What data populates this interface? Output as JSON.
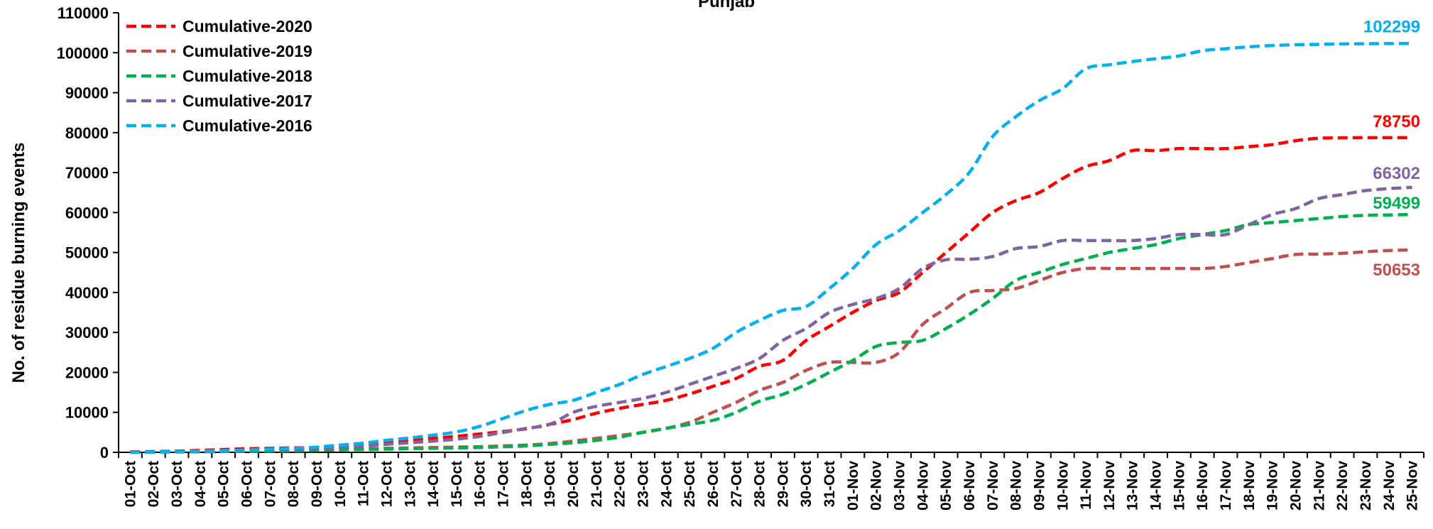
{
  "chart_data": {
    "type": "line",
    "title": "Punjab",
    "ylabel": "No. of residue burning events",
    "xlabel": "",
    "ylim": [
      0,
      110000
    ],
    "yticks": [
      0,
      10000,
      20000,
      30000,
      40000,
      50000,
      60000,
      70000,
      80000,
      90000,
      100000,
      110000
    ],
    "grid": false,
    "legend_position": "top-left",
    "categories": [
      "01-Oct",
      "02-Oct",
      "03-Oct",
      "04-Oct",
      "05-Oct",
      "06-Oct",
      "07-Oct",
      "08-Oct",
      "09-Oct",
      "10-Oct",
      "11-Oct",
      "12-Oct",
      "13-Oct",
      "14-Oct",
      "15-Oct",
      "16-Oct",
      "17-Oct",
      "18-Oct",
      "19-Oct",
      "20-Oct",
      "21-Oct",
      "22-Oct",
      "23-Oct",
      "24-Oct",
      "25-Oct",
      "26-Oct",
      "27-Oct",
      "28-Oct",
      "29-Oct",
      "30-Oct",
      "31-Oct",
      "01-Nov",
      "02-Nov",
      "03-Nov",
      "04-Nov",
      "05-Nov",
      "06-Nov",
      "07-Nov",
      "08-Nov",
      "09-Nov",
      "10-Nov",
      "11-Nov",
      "12-Nov",
      "13-Nov",
      "14-Nov",
      "15-Nov",
      "16-Nov",
      "17-Nov",
      "18-Nov",
      "19-Nov",
      "20-Nov",
      "21-Nov",
      "22-Nov",
      "23-Nov",
      "24-Nov",
      "25-Nov"
    ],
    "series": [
      {
        "name": "Cumulative-2020",
        "color": "#ff0000",
        "end_label": "78750",
        "values": [
          100,
          200,
          300,
          500,
          700,
          900,
          1000,
          1100,
          1200,
          1500,
          2000,
          2600,
          3000,
          3500,
          4000,
          4600,
          5200,
          5900,
          7000,
          8200,
          9800,
          11000,
          12000,
          13000,
          14600,
          16500,
          18500,
          21500,
          23000,
          28000,
          31500,
          35000,
          38000,
          40000,
          45000,
          50000,
          55000,
          60000,
          63000,
          65000,
          68500,
          71500,
          73000,
          75500,
          75500,
          76000,
          76000,
          76000,
          76500,
          77000,
          78000,
          78600,
          78700,
          78750,
          78750,
          78750
        ]
      },
      {
        "name": "Cumulative-2019",
        "color": "#c0504d",
        "end_label": "50653",
        "values": [
          0,
          100,
          150,
          200,
          300,
          400,
          500,
          600,
          700,
          800,
          900,
          1000,
          1100,
          1200,
          1300,
          1400,
          1600,
          1800,
          2200,
          2800,
          3500,
          4200,
          5000,
          6000,
          7500,
          10000,
          12500,
          15500,
          17500,
          20500,
          22500,
          22500,
          22500,
          25000,
          32000,
          36000,
          40000,
          40500,
          41000,
          43000,
          45000,
          46000,
          46000,
          46000,
          46000,
          46000,
          46000,
          46500,
          47500,
          48500,
          49500,
          49600,
          49800,
          50200,
          50500,
          50653
        ]
      },
      {
        "name": "Cumulative-2018",
        "color": "#00b050",
        "end_label": "59499",
        "values": [
          0,
          50,
          100,
          150,
          200,
          250,
          300,
          400,
          500,
          600,
          700,
          800,
          900,
          1000,
          1100,
          1200,
          1400,
          1600,
          2000,
          2400,
          3000,
          3800,
          5000,
          6000,
          7000,
          8000,
          10000,
          12800,
          14500,
          17000,
          20000,
          23000,
          26500,
          27500,
          28000,
          31000,
          34500,
          38500,
          43000,
          45000,
          47000,
          48500,
          50000,
          51000,
          52000,
          53500,
          54500,
          55500,
          57000,
          57500,
          58000,
          58500,
          59000,
          59300,
          59400,
          59499
        ]
      },
      {
        "name": "Cumulative-2017",
        "color": "#8064a2",
        "end_label": "66302",
        "values": [
          0,
          100,
          200,
          300,
          400,
          500,
          600,
          700,
          900,
          1200,
          1600,
          2000,
          2400,
          2800,
          3300,
          4000,
          5000,
          6000,
          7000,
          10000,
          11500,
          12500,
          13500,
          15000,
          17000,
          19000,
          21000,
          23500,
          28000,
          31000,
          35000,
          37000,
          38500,
          41000,
          46000,
          48200,
          48300,
          49000,
          51000,
          51500,
          53000,
          53000,
          53000,
          53000,
          53500,
          54500,
          54500,
          54500,
          57000,
          59500,
          61000,
          63500,
          64500,
          65500,
          66000,
          66302
        ]
      },
      {
        "name": "Cumulative-2016",
        "color": "#00b0f0",
        "end_label": "102299",
        "values": [
          0,
          100,
          200,
          300,
          400,
          600,
          800,
          1000,
          1300,
          1800,
          2300,
          3000,
          3600,
          4300,
          5100,
          6500,
          8500,
          10500,
          12000,
          13000,
          15000,
          17000,
          19500,
          21500,
          23500,
          26000,
          30000,
          33000,
          35500,
          36500,
          41000,
          46000,
          52000,
          55500,
          60000,
          64500,
          70000,
          79000,
          84000,
          88000,
          91000,
          96000,
          97000,
          97800,
          98500,
          99200,
          100500,
          101000,
          101500,
          101800,
          102000,
          102100,
          102200,
          102250,
          102290,
          102299
        ]
      }
    ]
  }
}
